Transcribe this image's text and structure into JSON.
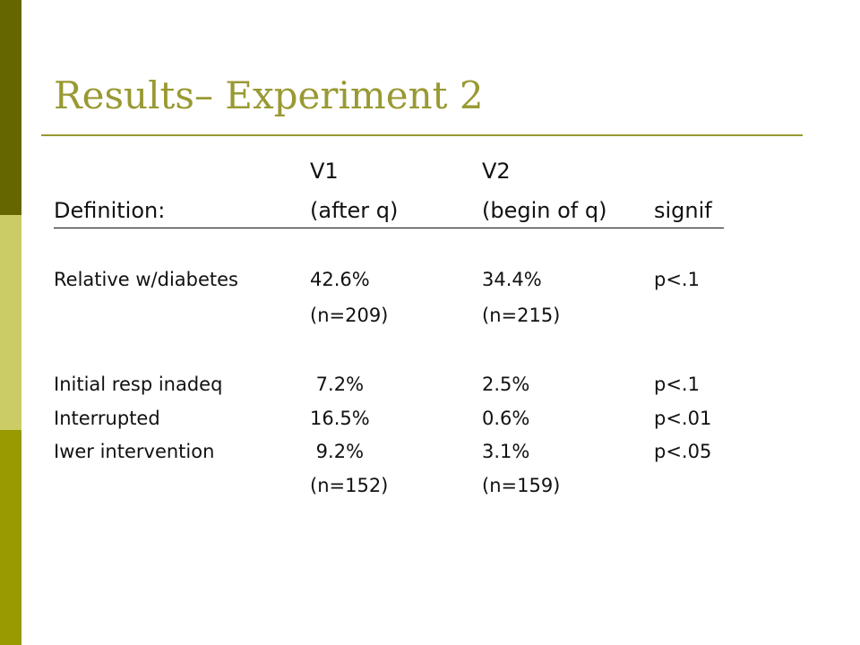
{
  "slide": {
    "title": "Results– Experiment 2",
    "colors": {
      "title": "#999933",
      "bar_top": "#666600",
      "bar_middle": "#cccc66",
      "bar_bottom": "#999900"
    }
  },
  "table": {
    "header_row1": {
      "label": "",
      "v1": "V1",
      "v2": "V2",
      "signif": ""
    },
    "header_row2": {
      "label": "Definition:",
      "v1": "(after q)",
      "v2": "(begin of q)",
      "signif": "signif"
    },
    "rows": [
      {
        "label": "Relative w/diabetes",
        "v1": "42.6%",
        "v2": "34.4%",
        "signif": "p<.1"
      },
      {
        "label": "",
        "v1": "(n=209)",
        "v2": "(n=215)",
        "signif": ""
      },
      {
        "label": "Initial resp inadeq",
        "v1": " 7.2%",
        "v2": "2.5%",
        "signif": "p<.1"
      },
      {
        "label": "Interrupted",
        "v1": "16.5%",
        "v2": "0.6%",
        "signif": "p<.01"
      },
      {
        "label": "Iwer intervention",
        "v1": " 9.2%",
        "v2": "3.1%",
        "signif": "p<.05"
      },
      {
        "label": "",
        "v1": "(n=152)",
        "v2": "(n=159)",
        "signif": ""
      }
    ]
  }
}
